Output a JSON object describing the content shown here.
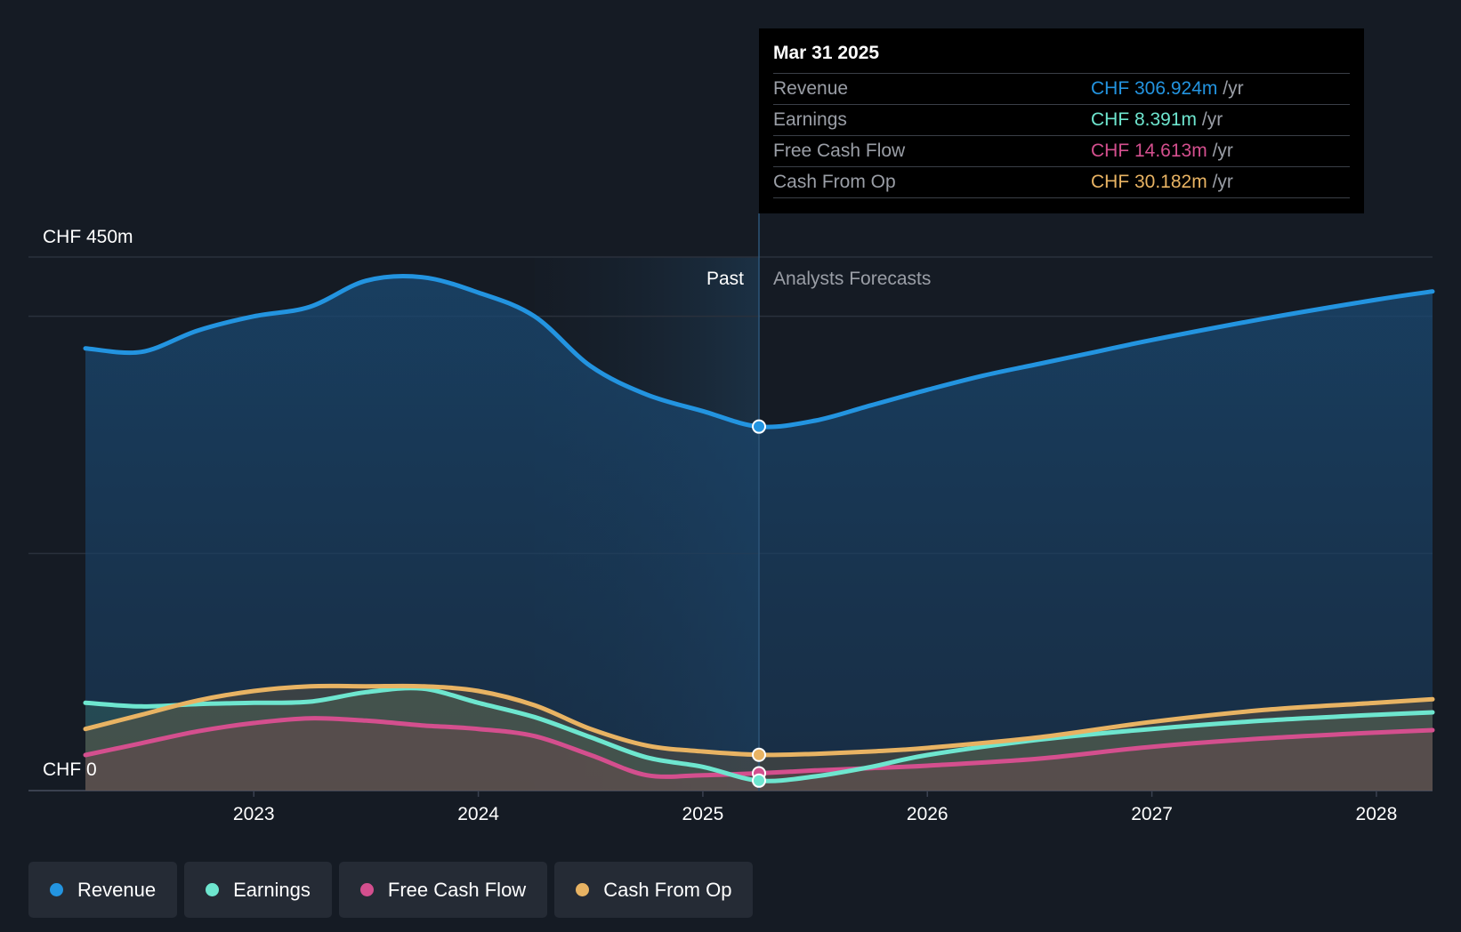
{
  "chart_data": {
    "type": "line",
    "x_axis": {
      "ticks": [
        {
          "label": "2023",
          "value": 2023
        },
        {
          "label": "2024",
          "value": 2024
        },
        {
          "label": "2025",
          "value": 2025
        },
        {
          "label": "2026",
          "value": 2026
        },
        {
          "label": "2027",
          "value": 2027
        },
        {
          "label": "2028",
          "value": 2028
        }
      ],
      "range": [
        2022.25,
        2028.25
      ]
    },
    "y_axis": {
      "range": [
        0,
        450
      ],
      "unit": "CHF m",
      "labels": [
        {
          "text": "CHF 450m",
          "value": 450
        },
        {
          "text": "CHF 0",
          "value": 0
        }
      ],
      "gridlines": [
        0,
        200,
        400,
        450
      ]
    },
    "divider": {
      "x": 2025.25,
      "past_label": "Past",
      "forecast_label": "Analysts Forecasts",
      "past_band_start": 2024.25
    },
    "series": [
      {
        "name": "Revenue",
        "color": "#2394e0",
        "points": [
          [
            2022.25,
            373
          ],
          [
            2022.5,
            370
          ],
          [
            2022.75,
            388
          ],
          [
            2023.0,
            400
          ],
          [
            2023.25,
            408
          ],
          [
            2023.5,
            430
          ],
          [
            2023.75,
            433
          ],
          [
            2024.0,
            420
          ],
          [
            2024.25,
            400
          ],
          [
            2024.5,
            358
          ],
          [
            2024.75,
            334
          ],
          [
            2025.0,
            320
          ],
          [
            2025.25,
            307
          ],
          [
            2025.5,
            312
          ],
          [
            2025.75,
            325
          ],
          [
            2026.0,
            338
          ],
          [
            2026.25,
            350
          ],
          [
            2026.5,
            360
          ],
          [
            2026.75,
            370
          ],
          [
            2027.0,
            380
          ],
          [
            2027.5,
            398
          ],
          [
            2028.0,
            414
          ],
          [
            2028.25,
            421
          ]
        ]
      },
      {
        "name": "Earnings",
        "color": "#6ee6cf",
        "points": [
          [
            2022.25,
            74
          ],
          [
            2022.5,
            71
          ],
          [
            2022.75,
            73
          ],
          [
            2023.0,
            74
          ],
          [
            2023.25,
            75
          ],
          [
            2023.5,
            83
          ],
          [
            2023.75,
            86
          ],
          [
            2024.0,
            74
          ],
          [
            2024.25,
            62
          ],
          [
            2024.5,
            45
          ],
          [
            2024.75,
            28
          ],
          [
            2025.0,
            20
          ],
          [
            2025.25,
            8.4
          ],
          [
            2025.5,
            12
          ],
          [
            2025.75,
            20
          ],
          [
            2026.0,
            30
          ],
          [
            2026.5,
            43
          ],
          [
            2027.0,
            52
          ],
          [
            2027.5,
            59
          ],
          [
            2028.0,
            64
          ],
          [
            2028.25,
            66
          ]
        ]
      },
      {
        "name": "Free Cash Flow",
        "color": "#d44f8e",
        "points": [
          [
            2022.25,
            30
          ],
          [
            2022.5,
            40
          ],
          [
            2022.75,
            50
          ],
          [
            2023.0,
            57
          ],
          [
            2023.25,
            61
          ],
          [
            2023.5,
            59
          ],
          [
            2023.75,
            55
          ],
          [
            2024.0,
            52
          ],
          [
            2024.25,
            46
          ],
          [
            2024.5,
            30
          ],
          [
            2024.75,
            13
          ],
          [
            2025.0,
            13
          ],
          [
            2025.25,
            14.6
          ],
          [
            2025.5,
            17
          ],
          [
            2025.75,
            19
          ],
          [
            2026.0,
            21
          ],
          [
            2026.5,
            27
          ],
          [
            2027.0,
            37
          ],
          [
            2027.5,
            44
          ],
          [
            2028.0,
            49
          ],
          [
            2028.25,
            51
          ]
        ]
      },
      {
        "name": "Cash From Op",
        "color": "#e8b363",
        "points": [
          [
            2022.25,
            52
          ],
          [
            2022.5,
            64
          ],
          [
            2022.75,
            76
          ],
          [
            2023.0,
            84
          ],
          [
            2023.25,
            88
          ],
          [
            2023.5,
            88
          ],
          [
            2023.75,
            88
          ],
          [
            2024.0,
            84
          ],
          [
            2024.25,
            72
          ],
          [
            2024.5,
            52
          ],
          [
            2024.75,
            38
          ],
          [
            2025.0,
            33
          ],
          [
            2025.25,
            30.2
          ],
          [
            2025.5,
            31
          ],
          [
            2025.75,
            33
          ],
          [
            2026.0,
            36
          ],
          [
            2026.5,
            45
          ],
          [
            2027.0,
            58
          ],
          [
            2027.5,
            68
          ],
          [
            2028.0,
            74
          ],
          [
            2028.25,
            77
          ]
        ]
      }
    ]
  },
  "tooltip": {
    "date": "Mar 31 2025",
    "rows": [
      {
        "label": "Revenue",
        "value": "CHF 306.924m",
        "unit": "/yr",
        "color": "#2394e0"
      },
      {
        "label": "Earnings",
        "value": "CHF 8.391m",
        "unit": "/yr",
        "color": "#6ee6cf"
      },
      {
        "label": "Free Cash Flow",
        "value": "CHF 14.613m",
        "unit": "/yr",
        "color": "#d44f8e"
      },
      {
        "label": "Cash From Op",
        "value": "CHF 30.182m",
        "unit": "/yr",
        "color": "#e8b363"
      }
    ]
  },
  "legend": [
    {
      "label": "Revenue",
      "color": "#2394e0"
    },
    {
      "label": "Earnings",
      "color": "#6ee6cf"
    },
    {
      "label": "Free Cash Flow",
      "color": "#d44f8e"
    },
    {
      "label": "Cash From Op",
      "color": "#e8b363"
    }
  ]
}
